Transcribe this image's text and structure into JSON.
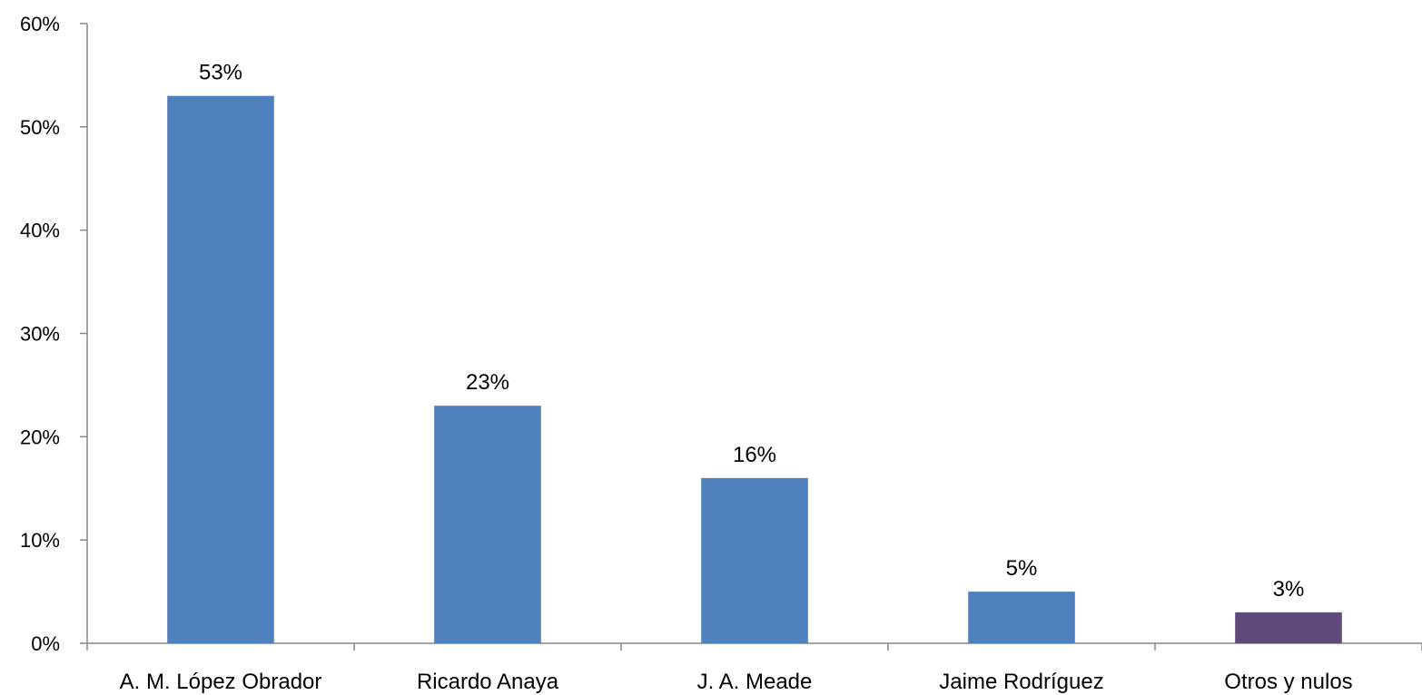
{
  "chart_data": {
    "type": "bar",
    "title": "",
    "xlabel": "",
    "ylabel": "",
    "categories": [
      "A. M. López Obrador",
      "Ricardo Anaya",
      "J. A. Meade",
      "Jaime Rodríguez",
      "Otros y nulos"
    ],
    "values": [
      53,
      23,
      16,
      5,
      3
    ],
    "data_labels": [
      "53%",
      "23%",
      "16%",
      "5%",
      "3%"
    ],
    "bar_colors": [
      "#4F81BD",
      "#4F81BD",
      "#4F81BD",
      "#4F81BD",
      "#604A7B"
    ],
    "ylim": [
      0,
      60
    ],
    "yticks": [
      0,
      10,
      20,
      30,
      40,
      50,
      60
    ],
    "ytick_labels": [
      "0%",
      "10%",
      "20%",
      "30%",
      "40%",
      "50%",
      "60%"
    ],
    "grid": false,
    "legend": "none",
    "axis_color": "#868686"
  }
}
